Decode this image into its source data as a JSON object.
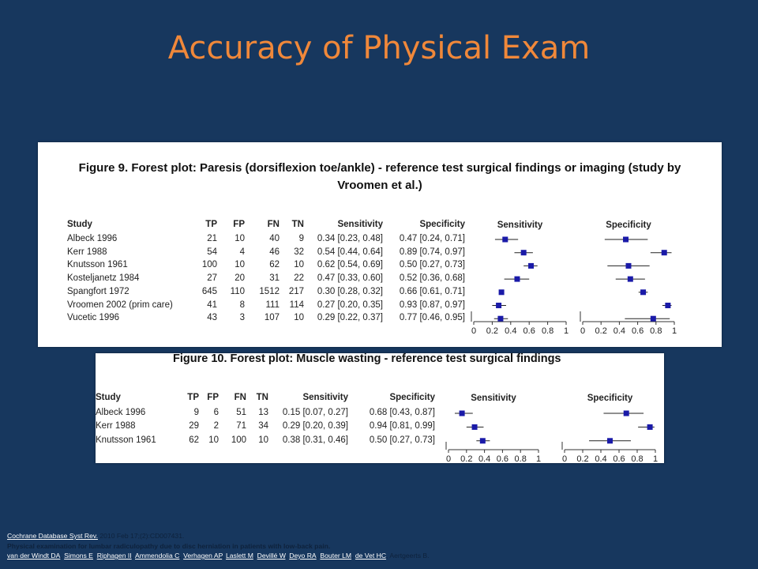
{
  "title": "Accuracy of Physical Exam",
  "fig9": {
    "caption_line1": "Figure 9.    Forest plot: Paresis (dorsiflexion toe/ankle) - reference test surgical findings or imaging (study by",
    "caption_line2": "Vroomen et al.)",
    "headers": [
      "Study",
      "TP",
      "FP",
      "FN",
      "TN",
      "Sensitivity",
      "Specificity",
      "Sensitivity",
      "Specificity"
    ],
    "rows": [
      [
        "Albeck 1996",
        "21",
        "10",
        "40",
        "9",
        "0.34 [0.23, 0.48]",
        "0.47 [0.24, 0.71]"
      ],
      [
        "Kerr 1988",
        "54",
        "4",
        "46",
        "32",
        "0.54 [0.44, 0.64]",
        "0.89 [0.74, 0.97]"
      ],
      [
        "Knutsson 1961",
        "100",
        "10",
        "62",
        "10",
        "0.62 [0.54, 0.69]",
        "0.50 [0.27, 0.73]"
      ],
      [
        "Kosteljanetz 1984",
        "27",
        "20",
        "31",
        "22",
        "0.47 [0.33, 0.60]",
        "0.52 [0.36, 0.68]"
      ],
      [
        "Spangfort 1972",
        "645",
        "110",
        "1512",
        "217",
        "0.30 [0.28, 0.32]",
        "0.66 [0.61, 0.71]"
      ],
      [
        "Vroomen 2002 (prim care)",
        "41",
        "8",
        "111",
        "114",
        "0.27 [0.20, 0.35]",
        "0.93 [0.87, 0.97]"
      ],
      [
        "Vucetic 1996",
        "43",
        "3",
        "107",
        "10",
        "0.29 [0.22, 0.37]",
        "0.77 [0.46, 0.95]"
      ]
    ],
    "axis_ticks": [
      "0",
      "0.2",
      "0.4",
      "0.6",
      "0.8",
      "1"
    ]
  },
  "fig10": {
    "caption": "Figure 10.    Forest plot: Muscle wasting - reference test surgical findings",
    "headers": [
      "Study",
      "TP",
      "FP",
      "FN",
      "TN",
      "Sensitivity",
      "Specificity",
      "Sensitivity",
      "Specificity"
    ],
    "rows": [
      [
        "Albeck 1996",
        "9",
        "6",
        "51",
        "13",
        "0.15 [0.07, 0.27]",
        "0.68 [0.43, 0.87]"
      ],
      [
        "Kerr 1988",
        "29",
        "2",
        "71",
        "34",
        "0.29 [0.20, 0.39]",
        "0.94 [0.81, 0.99]"
      ],
      [
        "Knutsson 1961",
        "62",
        "10",
        "100",
        "10",
        "0.38 [0.31, 0.46]",
        "0.50 [0.27, 0.73]"
      ]
    ],
    "axis_ticks": [
      "0",
      "0.2",
      "0.4",
      "0.6",
      "0.8",
      "1"
    ]
  },
  "chart_data": [
    {
      "type": "scatter",
      "title": "Figure 9. Forest plot: Paresis (dorsiflexion toe/ankle) - reference test surgical findings or imaging (study by Vroomen et al.)",
      "categories": [
        "Albeck 1996",
        "Kerr 1988",
        "Knutsson 1961",
        "Kosteljanetz 1984",
        "Spangfort 1972",
        "Vroomen 2002 (prim care)",
        "Vucetic 1996"
      ],
      "xlim": [
        0,
        1
      ],
      "series": [
        {
          "name": "Sensitivity",
          "values": [
            0.34,
            0.54,
            0.62,
            0.47,
            0.3,
            0.27,
            0.29
          ],
          "lower": [
            0.23,
            0.44,
            0.54,
            0.33,
            0.28,
            0.2,
            0.22
          ],
          "upper": [
            0.48,
            0.64,
            0.69,
            0.6,
            0.32,
            0.35,
            0.37
          ]
        },
        {
          "name": "Specificity",
          "values": [
            0.47,
            0.89,
            0.5,
            0.52,
            0.66,
            0.93,
            0.77
          ],
          "lower": [
            0.24,
            0.74,
            0.27,
            0.36,
            0.61,
            0.87,
            0.46
          ],
          "upper": [
            0.71,
            0.97,
            0.73,
            0.68,
            0.71,
            0.97,
            0.95
          ]
        }
      ]
    },
    {
      "type": "scatter",
      "title": "Figure 10. Forest plot: Muscle wasting - reference test surgical findings",
      "categories": [
        "Albeck 1996",
        "Kerr 1988",
        "Knutsson 1961"
      ],
      "xlim": [
        0,
        1
      ],
      "series": [
        {
          "name": "Sensitivity",
          "values": [
            0.15,
            0.29,
            0.38
          ],
          "lower": [
            0.07,
            0.2,
            0.31
          ],
          "upper": [
            0.27,
            0.39,
            0.46
          ]
        },
        {
          "name": "Specificity",
          "values": [
            0.68,
            0.94,
            0.5
          ],
          "lower": [
            0.43,
            0.81,
            0.27
          ],
          "upper": [
            0.87,
            0.99,
            0.73
          ]
        }
      ]
    }
  ],
  "footer": {
    "journal_link": "Cochrane Database Syst Rev.",
    "citation": "2010 Feb 17;(2):CD007431.",
    "article_title": "Physical examination for lumbar radiculopathy due to disc herniation in patients with low-back pain.",
    "authors": [
      "van der Windt DA",
      "Simons E",
      "Riphagen II",
      "Ammendolia C",
      "Verhagen AP",
      "Laslett M",
      "Devillé W",
      "Deyo RA",
      "Bouter LM",
      "de Vet HC"
    ],
    "last_author": "Aertgeerts B."
  },
  "colors": {
    "background": "#17375e",
    "title": "#f0883a",
    "marker": "#1a1aa8"
  }
}
